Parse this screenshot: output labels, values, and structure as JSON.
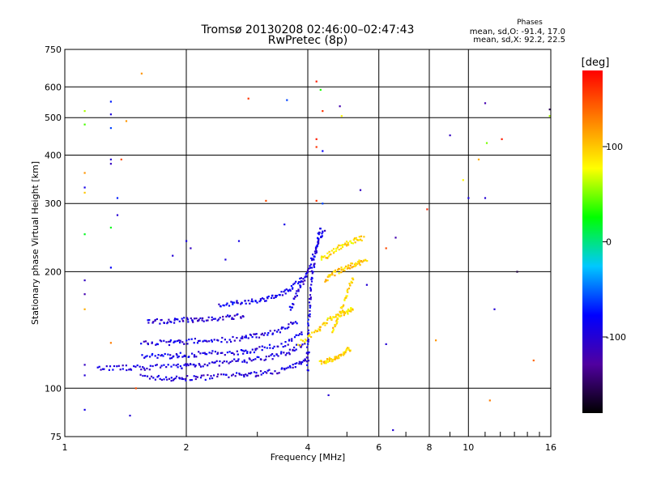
{
  "chart_data": {
    "type": "scatter",
    "title": "Tromsø 20130208 02:46:00–02:47:43",
    "subtitle": "RwPretec (8p)",
    "stats": {
      "heading": "Phases",
      "line1": "mean, sd,O: -91.4, 17.0",
      "line2": "mean, sd,X:  92.2, 22.5"
    },
    "xlabel": "Frequency [MHz]",
    "ylabel": "Stationary phase Virtual Height [km]",
    "x_scale": "log",
    "y_scale": "log",
    "xlim": [
      1,
      16
    ],
    "ylim": [
      75,
      750
    ],
    "x_ticks": [
      1,
      2,
      4,
      6,
      8,
      10,
      16
    ],
    "x_tick_labels": [
      "1",
      "2",
      "4",
      "6",
      "8",
      "10",
      "16"
    ],
    "y_ticks": [
      75,
      100,
      200,
      300,
      400,
      500,
      600,
      750
    ],
    "y_tick_labels": [
      "75",
      "100",
      "200",
      "300",
      "400",
      "500",
      "600",
      "750"
    ],
    "grid": true,
    "colorbar": {
      "label": "[deg]",
      "range": [
        -180,
        180
      ],
      "ticks": [
        100,
        0,
        -100
      ],
      "tick_labels": [
        "100",
        "0",
        "-100"
      ],
      "colors": [
        "#000000",
        "#5000a0",
        "#0000ff",
        "#00c8ff",
        "#00ff00",
        "#ffff00",
        "#ff8000",
        "#ff0000"
      ]
    },
    "o_mode_traces": [
      {
        "name": "O trace 1",
        "x": [
          1.55,
          1.8,
          2.0,
          2.3,
          2.7,
          3.0,
          3.4,
          3.8,
          4.05
        ],
        "y": [
          107,
          106,
          106,
          107,
          108,
          109,
          111,
          115,
          125
        ],
        "phase": -100
      },
      {
        "name": "O trace 2",
        "x": [
          1.2,
          1.4,
          1.6,
          1.9,
          2.1,
          2.4,
          2.8,
          3.2,
          3.6,
          3.95
        ],
        "y": [
          113,
          113,
          113,
          114,
          115,
          116,
          118,
          120,
          124,
          132
        ],
        "phase": -95
      },
      {
        "name": "O trace 3",
        "x": [
          1.55,
          1.8,
          2.0,
          2.3,
          2.7,
          3.0,
          3.5,
          3.9
        ],
        "y": [
          121,
          121,
          122,
          123,
          124,
          126,
          130,
          140
        ],
        "phase": -90
      },
      {
        "name": "O trace 4",
        "x": [
          1.55,
          1.8,
          2.0,
          2.3,
          2.7,
          3.0,
          3.4,
          3.8
        ],
        "y": [
          131,
          131,
          132,
          133,
          134,
          137,
          141,
          150
        ],
        "phase": -95
      },
      {
        "name": "O trace 5",
        "x": [
          1.6,
          1.8,
          2.0,
          2.2,
          2.5,
          2.8
        ],
        "y": [
          149,
          149,
          150,
          151,
          152,
          154
        ],
        "phase": -100
      },
      {
        "name": "O trace 6",
        "x": [
          2.4,
          2.7,
          3.0,
          3.3,
          3.6,
          3.9
        ],
        "y": [
          165,
          166,
          168,
          172,
          180,
          195
        ],
        "phase": -90
      },
      {
        "name": "O trace 7",
        "x": [
          3.6,
          3.8,
          4.0,
          4.2,
          4.4
        ],
        "y": [
          160,
          180,
          200,
          230,
          260
        ],
        "phase": -95
      },
      {
        "name": "O trace 8",
        "x": [
          4.0,
          4.0,
          4.05,
          4.1,
          4.2,
          4.3
        ],
        "y": [
          110,
          140,
          170,
          200,
          230,
          260
        ],
        "phase": -90
      }
    ],
    "x_mode_traces": [
      {
        "name": "X trace 1",
        "x": [
          4.3,
          4.5,
          4.7,
          4.9,
          5.1
        ],
        "y": [
          117,
          118,
          120,
          123,
          127
        ],
        "phase": 95
      },
      {
        "name": "X trace 2",
        "x": [
          3.8,
          4.2,
          4.5,
          4.8,
          5.0,
          5.2
        ],
        "y": [
          130,
          140,
          150,
          155,
          158,
          160
        ],
        "phase": 90
      },
      {
        "name": "X trace 3",
        "x": [
          4.6,
          4.8,
          5.0,
          5.2
        ],
        "y": [
          140,
          155,
          175,
          195
        ],
        "phase": 95
      },
      {
        "name": "X trace 4",
        "x": [
          4.4,
          4.7,
          5.0,
          5.3,
          5.6
        ],
        "y": [
          190,
          200,
          205,
          210,
          215
        ],
        "phase": 100
      },
      {
        "name": "X trace 5",
        "x": [
          4.3,
          4.6,
          4.9,
          5.2,
          5.5
        ],
        "y": [
          215,
          225,
          235,
          240,
          245
        ],
        "phase": 90
      }
    ],
    "scattered_points": [
      {
        "x": 1.12,
        "y": 520,
        "phase": 60
      },
      {
        "x": 1.12,
        "y": 480,
        "phase": 40
      },
      {
        "x": 1.12,
        "y": 330,
        "phase": -90
      },
      {
        "x": 1.12,
        "y": 360,
        "phase": 120
      },
      {
        "x": 1.12,
        "y": 320,
        "phase": 100
      },
      {
        "x": 1.12,
        "y": 250,
        "phase": 20
      },
      {
        "x": 1.12,
        "y": 190,
        "phase": -110
      },
      {
        "x": 1.12,
        "y": 175,
        "phase": -120
      },
      {
        "x": 1.12,
        "y": 160,
        "phase": 110
      },
      {
        "x": 1.12,
        "y": 115,
        "phase": -110
      },
      {
        "x": 1.12,
        "y": 108,
        "phase": -100
      },
      {
        "x": 1.12,
        "y": 88,
        "phase": -90
      },
      {
        "x": 1.3,
        "y": 550,
        "phase": -70
      },
      {
        "x": 1.3,
        "y": 510,
        "phase": -95
      },
      {
        "x": 1.3,
        "y": 470,
        "phase": -60
      },
      {
        "x": 1.3,
        "y": 390,
        "phase": -100
      },
      {
        "x": 1.3,
        "y": 380,
        "phase": -110
      },
      {
        "x": 1.3,
        "y": 260,
        "phase": 20
      },
      {
        "x": 1.3,
        "y": 205,
        "phase": -80
      },
      {
        "x": 1.3,
        "y": 131,
        "phase": 130
      },
      {
        "x": 1.35,
        "y": 280,
        "phase": -100
      },
      {
        "x": 1.35,
        "y": 310,
        "phase": -70
      },
      {
        "x": 1.38,
        "y": 390,
        "phase": 150
      },
      {
        "x": 1.42,
        "y": 490,
        "phase": 120
      },
      {
        "x": 1.55,
        "y": 650,
        "phase": 120
      },
      {
        "x": 1.45,
        "y": 85,
        "phase": -100
      },
      {
        "x": 1.5,
        "y": 100,
        "phase": 150
      },
      {
        "x": 1.85,
        "y": 220,
        "phase": -100
      },
      {
        "x": 2.0,
        "y": 240,
        "phase": -90
      },
      {
        "x": 2.05,
        "y": 230,
        "phase": -110
      },
      {
        "x": 2.5,
        "y": 215,
        "phase": -95
      },
      {
        "x": 2.7,
        "y": 240,
        "phase": -90
      },
      {
        "x": 2.85,
        "y": 560,
        "phase": 160
      },
      {
        "x": 3.15,
        "y": 305,
        "phase": 150
      },
      {
        "x": 3.5,
        "y": 265,
        "phase": -90
      },
      {
        "x": 3.55,
        "y": 555,
        "phase": -60
      },
      {
        "x": 4.2,
        "y": 620,
        "phase": 170
      },
      {
        "x": 4.3,
        "y": 590,
        "phase": 30
      },
      {
        "x": 4.35,
        "y": 520,
        "phase": 160
      },
      {
        "x": 4.2,
        "y": 440,
        "phase": 170
      },
      {
        "x": 4.2,
        "y": 420,
        "phase": 160
      },
      {
        "x": 4.35,
        "y": 410,
        "phase": -80
      },
      {
        "x": 4.2,
        "y": 305,
        "phase": 160
      },
      {
        "x": 4.35,
        "y": 300,
        "phase": -60
      },
      {
        "x": 4.8,
        "y": 535,
        "phase": -120
      },
      {
        "x": 4.85,
        "y": 505,
        "phase": 80
      },
      {
        "x": 5.4,
        "y": 325,
        "phase": -110
      },
      {
        "x": 5.6,
        "y": 185,
        "phase": -100
      },
      {
        "x": 6.25,
        "y": 230,
        "phase": 150
      },
      {
        "x": 6.6,
        "y": 245,
        "phase": -120
      },
      {
        "x": 6.25,
        "y": 130,
        "phase": -100
      },
      {
        "x": 6.5,
        "y": 78,
        "phase": -100
      },
      {
        "x": 4.5,
        "y": 96,
        "phase": -100
      },
      {
        "x": 7.9,
        "y": 290,
        "phase": 165
      },
      {
        "x": 8.3,
        "y": 133,
        "phase": 120
      },
      {
        "x": 9.0,
        "y": 450,
        "phase": -110
      },
      {
        "x": 9.7,
        "y": 345,
        "phase": 80
      },
      {
        "x": 10.0,
        "y": 310,
        "phase": -90
      },
      {
        "x": 10.6,
        "y": 390,
        "phase": 110
      },
      {
        "x": 11.0,
        "y": 545,
        "phase": -120
      },
      {
        "x": 11.0,
        "y": 310,
        "phase": -100
      },
      {
        "x": 11.1,
        "y": 430,
        "phase": 50
      },
      {
        "x": 11.6,
        "y": 160,
        "phase": -100
      },
      {
        "x": 12.1,
        "y": 440,
        "phase": 170
      },
      {
        "x": 11.3,
        "y": 93,
        "phase": 130
      },
      {
        "x": 13.2,
        "y": 200,
        "phase": -160
      },
      {
        "x": 14.5,
        "y": 118,
        "phase": 140
      },
      {
        "x": 15.9,
        "y": 525,
        "phase": -150
      },
      {
        "x": 15.9,
        "y": 505,
        "phase": 60
      }
    ]
  }
}
